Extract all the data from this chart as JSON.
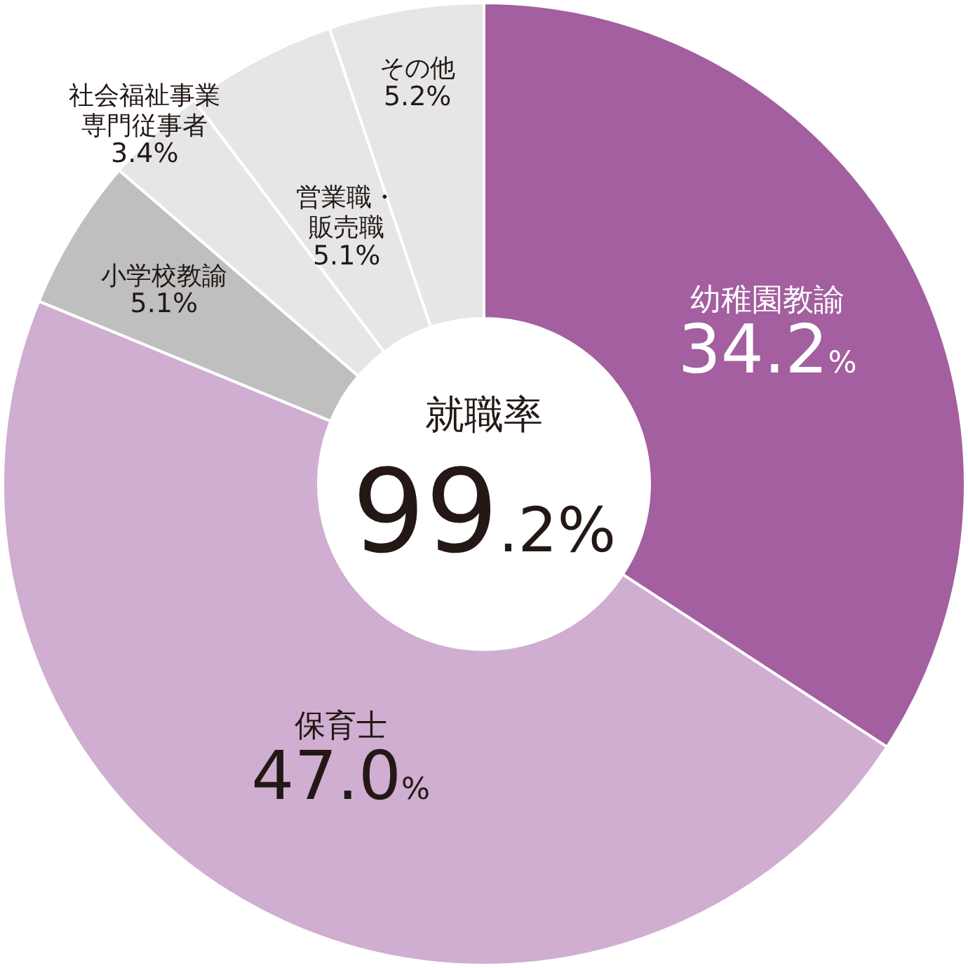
{
  "chart_data": {
    "type": "donut",
    "categories": [
      "幼稚園教諭",
      "保育士",
      "小学校教諭",
      "社会福祉事業専門従事者",
      "営業職・販売職",
      "その他"
    ],
    "values": [
      34.2,
      47.0,
      5.1,
      3.4,
      5.1,
      5.2
    ],
    "colors": [
      "#a35f9f",
      "#cfaed1",
      "#bebfbe",
      "#e6e6e6",
      "#e6e6e6",
      "#e6e6e6"
    ],
    "value_labels": [
      "34.2%",
      "47.0%",
      "5.1%",
      "3.4%",
      "5.1%",
      "5.2%"
    ],
    "annotations": [
      "就職率",
      "99.2%"
    ]
  }
}
